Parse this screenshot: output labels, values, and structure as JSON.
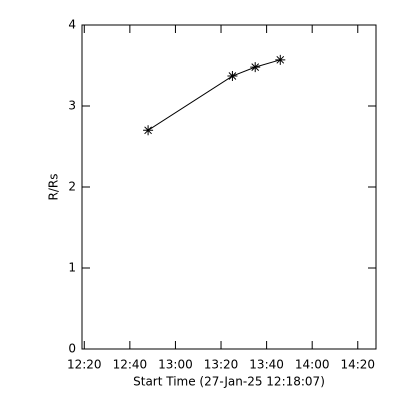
{
  "chart_data": {
    "type": "line",
    "x_label": "Start Time (27-Jan-25 12:18:07)",
    "y_label": "R/Rs",
    "x": [
      "12:48",
      "13:25",
      "13:35",
      "13:46"
    ],
    "series": [
      {
        "values": [
          2.7,
          3.37,
          3.48,
          3.57
        ],
        "color": "#000000"
      }
    ],
    "xlim": [
      "12:19",
      "14:28"
    ],
    "xticks": [
      "12:20",
      "12:40",
      "13:00",
      "13:20",
      "13:40",
      "14:00",
      "14:20"
    ],
    "ylim": [
      0,
      4
    ],
    "yticks": [
      0,
      1,
      2,
      3,
      4
    ]
  }
}
